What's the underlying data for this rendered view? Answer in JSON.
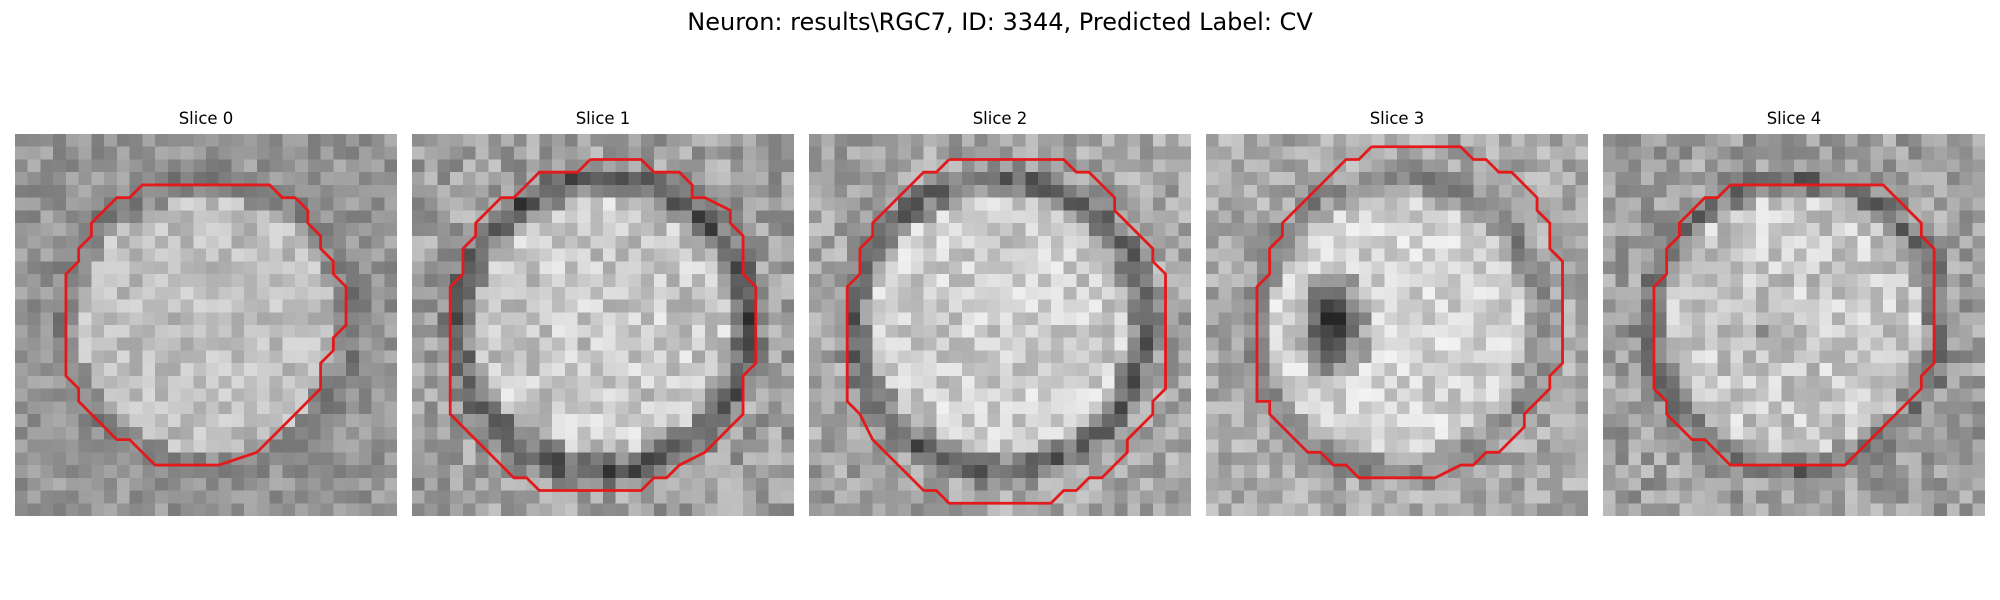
{
  "figure": {
    "title": "Neuron: results\\RGC7, ID: 3344, Predicted Label: CV"
  },
  "colors": {
    "contour": "#e31a1c",
    "background": "#ffffff"
  },
  "panels": [
    {
      "title": "Slice 0",
      "seed": 11,
      "base": 150,
      "contrast": 55,
      "blob": false,
      "ring": 30
    },
    {
      "title": "Slice 1",
      "seed": 23,
      "base": 160,
      "contrast": 75,
      "blob": false,
      "ring": 90
    },
    {
      "title": "Slice 2",
      "seed": 37,
      "base": 165,
      "contrast": 70,
      "blob": false,
      "ring": 80
    },
    {
      "title": "Slice 3",
      "seed": 41,
      "base": 170,
      "contrast": 65,
      "blob": true,
      "ring": 40
    },
    {
      "title": "Slice 4",
      "seed": 53,
      "base": 160,
      "contrast": 75,
      "blob": false,
      "ring": 60
    }
  ]
}
